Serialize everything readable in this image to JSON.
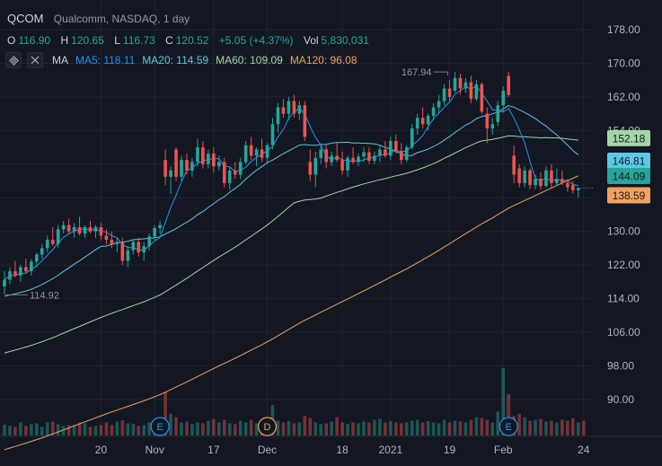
{
  "header": {
    "symbol": "QCOM",
    "description": "Qualcomm, NASDAQ, 1 day",
    "open_label": "O",
    "open": "116.90",
    "high_label": "H",
    "high": "120.65",
    "low_label": "L",
    "low": "116.73",
    "close_label": "C",
    "close": "120.52",
    "change": "+5.05 (+4.37%)",
    "volume_label": "Vol",
    "volume": "5,830,031",
    "ma_label": "MA",
    "ma5": "MA5: 118.11",
    "ma20": "MA20: 114.59",
    "ma60": "MA60: 109.09",
    "ma120": "MA120: 96.08"
  },
  "colors": {
    "background": "#131722",
    "up": "#26a69a",
    "down": "#ef5350",
    "ma5": "#2196f3",
    "ma20": "#5ac8e6",
    "ma60": "#a5d6a7",
    "ma120": "#f0a35e",
    "grid": "#1f2433",
    "axis_text": "#b2b5be"
  },
  "chart_data": {
    "type": "candlestick",
    "y_axis": {
      "ticks": [
        90,
        98,
        106,
        114,
        122,
        130,
        138,
        146,
        154,
        162,
        170,
        178
      ],
      "tick_labels": [
        "90.00",
        "98.00",
        "106.00",
        "114.00",
        "122.00",
        "130.00",
        "138.00",
        "146.00",
        "154.00",
        "162.00",
        "170.00",
        "178.00"
      ],
      "range": [
        86,
        180
      ]
    },
    "x_axis": {
      "ticks": [
        {
          "index": 18,
          "label": "20"
        },
        {
          "index": 28,
          "label": "Nov"
        },
        {
          "index": 39,
          "label": "17"
        },
        {
          "index": 49,
          "label": "Dec"
        },
        {
          "index": 63,
          "label": "18"
        },
        {
          "index": 72,
          "label": "2021"
        },
        {
          "index": 83,
          "label": "19"
        },
        {
          "index": 93,
          "label": "Feb"
        },
        {
          "index": 108,
          "label": "24"
        }
      ]
    },
    "price_labels": [
      {
        "text": "152.18",
        "value": 152.18,
        "bg": "#a5d6a7"
      },
      {
        "text": "146.81",
        "value": 146.81,
        "bg": "#5ac8e6"
      },
      {
        "text": "144.09",
        "value": 144.09,
        "bg": "#26a69a"
      },
      {
        "text": "138.59",
        "value": 138.59,
        "bg": "#f0a35e"
      }
    ],
    "annotations": [
      {
        "text": "167.94",
        "index": 83,
        "value": 167.94,
        "kind": "high"
      },
      {
        "text": "114.92",
        "index": 0,
        "value": 114.92,
        "kind": "low"
      }
    ],
    "events": [
      {
        "text": "E",
        "index": 29,
        "color": "#2196f3"
      },
      {
        "text": "D",
        "index": 49,
        "color": "#f0a35e"
      },
      {
        "text": "E",
        "index": 94,
        "color": "#2196f3"
      }
    ],
    "candles": [
      {
        "o": 116.9,
        "h": 120.6,
        "l": 115.0,
        "c": 118.5
      },
      {
        "o": 118.5,
        "h": 121.5,
        "l": 117.5,
        "c": 120.5
      },
      {
        "o": 120.5,
        "h": 123.0,
        "l": 119.0,
        "c": 119.5
      },
      {
        "o": 119.5,
        "h": 122.0,
        "l": 118.0,
        "c": 121.5
      },
      {
        "o": 121.5,
        "h": 123.5,
        "l": 120.0,
        "c": 120.5
      },
      {
        "o": 120.5,
        "h": 123.5,
        "l": 119.5,
        "c": 122.8
      },
      {
        "o": 122.8,
        "h": 125.0,
        "l": 121.5,
        "c": 124.5
      },
      {
        "o": 124.5,
        "h": 127.0,
        "l": 123.5,
        "c": 126.0
      },
      {
        "o": 126.0,
        "h": 129.0,
        "l": 125.0,
        "c": 128.0
      },
      {
        "o": 128.0,
        "h": 131.0,
        "l": 126.5,
        "c": 127.0
      },
      {
        "o": 127.0,
        "h": 131.5,
        "l": 126.0,
        "c": 130.5
      },
      {
        "o": 130.5,
        "h": 132.5,
        "l": 129.5,
        "c": 131.5
      },
      {
        "o": 131.5,
        "h": 133.0,
        "l": 129.5,
        "c": 130.0
      },
      {
        "o": 130.0,
        "h": 132.0,
        "l": 128.5,
        "c": 131.0
      },
      {
        "o": 131.0,
        "h": 133.5,
        "l": 129.0,
        "c": 129.5
      },
      {
        "o": 129.5,
        "h": 131.5,
        "l": 128.5,
        "c": 131.0
      },
      {
        "o": 131.0,
        "h": 132.5,
        "l": 129.5,
        "c": 130.0
      },
      {
        "o": 130.0,
        "h": 131.5,
        "l": 128.5,
        "c": 131.0
      },
      {
        "o": 131.0,
        "h": 132.0,
        "l": 128.0,
        "c": 129.0
      },
      {
        "o": 129.0,
        "h": 130.5,
        "l": 127.0,
        "c": 128.0
      },
      {
        "o": 128.0,
        "h": 130.0,
        "l": 126.0,
        "c": 127.0
      },
      {
        "o": 127.0,
        "h": 128.5,
        "l": 125.0,
        "c": 127.5
      },
      {
        "o": 127.5,
        "h": 128.5,
        "l": 122.0,
        "c": 123.0
      },
      {
        "o": 123.0,
        "h": 126.5,
        "l": 121.5,
        "c": 125.5
      },
      {
        "o": 125.5,
        "h": 128.0,
        "l": 124.5,
        "c": 127.5
      },
      {
        "o": 127.5,
        "h": 128.5,
        "l": 124.0,
        "c": 125.0
      },
      {
        "o": 125.0,
        "h": 127.5,
        "l": 123.0,
        "c": 126.5
      },
      {
        "o": 126.5,
        "h": 129.5,
        "l": 125.5,
        "c": 128.8
      },
      {
        "o": 128.8,
        "h": 131.5,
        "l": 128.0,
        "c": 130.8
      },
      {
        "o": 130.8,
        "h": 132.5,
        "l": 129.5,
        "c": 131.5
      },
      {
        "o": 147.0,
        "h": 149.5,
        "l": 141.0,
        "c": 143.0
      },
      {
        "o": 143.0,
        "h": 145.5,
        "l": 139.0,
        "c": 144.5
      },
      {
        "o": 149.5,
        "h": 150.0,
        "l": 142.0,
        "c": 143.0
      },
      {
        "o": 143.0,
        "h": 148.0,
        "l": 142.0,
        "c": 147.0
      },
      {
        "o": 147.0,
        "h": 148.5,
        "l": 143.5,
        "c": 144.5
      },
      {
        "o": 144.5,
        "h": 147.5,
        "l": 143.0,
        "c": 146.5
      },
      {
        "o": 146.5,
        "h": 152.0,
        "l": 145.5,
        "c": 150.0
      },
      {
        "o": 150.0,
        "h": 151.5,
        "l": 145.0,
        "c": 146.0
      },
      {
        "o": 146.0,
        "h": 149.5,
        "l": 145.0,
        "c": 148.5
      },
      {
        "o": 148.5,
        "h": 150.0,
        "l": 144.0,
        "c": 145.5
      },
      {
        "o": 145.5,
        "h": 148.0,
        "l": 144.5,
        "c": 146.5
      },
      {
        "o": 146.5,
        "h": 147.5,
        "l": 140.5,
        "c": 141.5
      },
      {
        "o": 141.5,
        "h": 145.5,
        "l": 140.0,
        "c": 144.5
      },
      {
        "o": 144.5,
        "h": 146.5,
        "l": 142.5,
        "c": 143.5
      },
      {
        "o": 143.5,
        "h": 147.5,
        "l": 142.5,
        "c": 146.5
      },
      {
        "o": 146.5,
        "h": 151.5,
        "l": 146.0,
        "c": 150.5
      },
      {
        "o": 150.5,
        "h": 152.5,
        "l": 147.0,
        "c": 148.0
      },
      {
        "o": 148.0,
        "h": 150.0,
        "l": 145.5,
        "c": 149.5
      },
      {
        "o": 149.5,
        "h": 152.0,
        "l": 146.5,
        "c": 147.5
      },
      {
        "o": 147.5,
        "h": 151.0,
        "l": 146.5,
        "c": 150.5
      },
      {
        "o": 150.5,
        "h": 157.0,
        "l": 149.5,
        "c": 155.5
      },
      {
        "o": 155.5,
        "h": 160.5,
        "l": 153.5,
        "c": 159.5
      },
      {
        "o": 159.5,
        "h": 161.5,
        "l": 157.0,
        "c": 158.0
      },
      {
        "o": 158.0,
        "h": 162.0,
        "l": 156.5,
        "c": 161.0
      },
      {
        "o": 161.0,
        "h": 162.5,
        "l": 157.0,
        "c": 158.0
      },
      {
        "o": 158.0,
        "h": 161.0,
        "l": 156.5,
        "c": 160.0
      },
      {
        "o": 160.0,
        "h": 161.0,
        "l": 151.5,
        "c": 152.5
      },
      {
        "o": 146.5,
        "h": 149.5,
        "l": 142.0,
        "c": 143.5
      },
      {
        "o": 143.5,
        "h": 149.0,
        "l": 140.5,
        "c": 147.5
      },
      {
        "o": 147.5,
        "h": 150.5,
        "l": 146.0,
        "c": 149.5
      },
      {
        "o": 149.5,
        "h": 150.5,
        "l": 145.0,
        "c": 146.5
      },
      {
        "o": 146.5,
        "h": 149.0,
        "l": 145.5,
        "c": 148.0
      },
      {
        "o": 148.0,
        "h": 151.0,
        "l": 146.5,
        "c": 147.0
      },
      {
        "o": 147.0,
        "h": 149.0,
        "l": 143.5,
        "c": 144.5
      },
      {
        "o": 144.5,
        "h": 148.0,
        "l": 143.0,
        "c": 147.5
      },
      {
        "o": 147.5,
        "h": 150.0,
        "l": 146.0,
        "c": 146.5
      },
      {
        "o": 146.5,
        "h": 148.5,
        "l": 145.5,
        "c": 147.8
      },
      {
        "o": 147.8,
        "h": 150.0,
        "l": 146.5,
        "c": 148.8
      },
      {
        "o": 148.8,
        "h": 150.0,
        "l": 146.0,
        "c": 146.8
      },
      {
        "o": 146.8,
        "h": 149.0,
        "l": 146.0,
        "c": 148.0
      },
      {
        "o": 148.0,
        "h": 150.5,
        "l": 146.5,
        "c": 149.5
      },
      {
        "o": 149.5,
        "h": 151.5,
        "l": 147.5,
        "c": 148.0
      },
      {
        "o": 148.0,
        "h": 152.5,
        "l": 147.0,
        "c": 151.5
      },
      {
        "o": 151.5,
        "h": 153.0,
        "l": 148.5,
        "c": 149.0
      },
      {
        "o": 149.0,
        "h": 151.0,
        "l": 146.0,
        "c": 147.0
      },
      {
        "o": 147.0,
        "h": 150.5,
        "l": 146.5,
        "c": 150.0
      },
      {
        "o": 150.0,
        "h": 155.5,
        "l": 149.5,
        "c": 154.5
      },
      {
        "o": 154.5,
        "h": 158.0,
        "l": 153.0,
        "c": 157.0
      },
      {
        "o": 157.0,
        "h": 159.5,
        "l": 154.5,
        "c": 155.5
      },
      {
        "o": 155.5,
        "h": 158.0,
        "l": 154.0,
        "c": 157.5
      },
      {
        "o": 157.5,
        "h": 160.5,
        "l": 156.5,
        "c": 159.5
      },
      {
        "o": 159.5,
        "h": 162.5,
        "l": 158.0,
        "c": 161.0
      },
      {
        "o": 161.0,
        "h": 165.0,
        "l": 160.0,
        "c": 164.0
      },
      {
        "o": 164.0,
        "h": 166.0,
        "l": 161.0,
        "c": 162.0
      },
      {
        "o": 163.5,
        "h": 167.94,
        "l": 163.0,
        "c": 166.5
      },
      {
        "o": 166.5,
        "h": 167.5,
        "l": 162.5,
        "c": 164.0
      },
      {
        "o": 164.0,
        "h": 166.5,
        "l": 163.0,
        "c": 165.5
      },
      {
        "o": 165.5,
        "h": 167.0,
        "l": 160.5,
        "c": 161.5
      },
      {
        "o": 161.5,
        "h": 166.0,
        "l": 161.0,
        "c": 165.0
      },
      {
        "o": 165.0,
        "h": 165.5,
        "l": 158.0,
        "c": 158.5
      },
      {
        "o": 158.0,
        "h": 159.5,
        "l": 151.0,
        "c": 154.5
      },
      {
        "o": 154.5,
        "h": 157.0,
        "l": 153.0,
        "c": 155.5
      },
      {
        "o": 156.0,
        "h": 161.0,
        "l": 155.0,
        "c": 160.0
      },
      {
        "o": 160.0,
        "h": 164.5,
        "l": 158.5,
        "c": 163.5
      },
      {
        "o": 167.0,
        "h": 168.0,
        "l": 162.0,
        "c": 162.5
      },
      {
        "o": 148.0,
        "h": 150.5,
        "l": 141.5,
        "c": 143.5
      },
      {
        "o": 145.0,
        "h": 146.0,
        "l": 140.5,
        "c": 141.5
      },
      {
        "o": 141.5,
        "h": 145.5,
        "l": 140.5,
        "c": 144.5
      },
      {
        "o": 144.5,
        "h": 145.0,
        "l": 140.0,
        "c": 141.0
      },
      {
        "o": 141.0,
        "h": 143.5,
        "l": 140.0,
        "c": 142.5
      },
      {
        "o": 142.5,
        "h": 144.0,
        "l": 140.0,
        "c": 140.8
      },
      {
        "o": 140.8,
        "h": 145.5,
        "l": 140.5,
        "c": 144.5
      },
      {
        "o": 144.5,
        "h": 146.0,
        "l": 140.5,
        "c": 141.5
      },
      {
        "o": 141.5,
        "h": 145.0,
        "l": 141.0,
        "c": 142.5
      },
      {
        "o": 142.5,
        "h": 144.5,
        "l": 141.0,
        "c": 141.5
      },
      {
        "o": 141.5,
        "h": 142.5,
        "l": 139.5,
        "c": 140.5
      },
      {
        "o": 141.0,
        "h": 142.0,
        "l": 139.0,
        "c": 139.8
      },
      {
        "o": 139.8,
        "h": 140.5,
        "l": 138.0,
        "c": 140.3
      }
    ],
    "volumes": [
      0.25,
      0.22,
      0.2,
      0.3,
      0.22,
      0.26,
      0.28,
      0.2,
      0.3,
      0.32,
      0.26,
      0.22,
      0.24,
      0.25,
      0.3,
      0.28,
      0.2,
      0.22,
      0.24,
      0.3,
      0.24,
      0.32,
      0.35,
      0.28,
      0.26,
      0.22,
      0.24,
      0.3,
      0.26,
      0.32,
      1.0,
      0.5,
      0.42,
      0.3,
      0.32,
      0.26,
      0.3,
      0.28,
      0.34,
      0.38,
      0.3,
      0.36,
      0.28,
      0.26,
      0.34,
      0.3,
      0.36,
      0.28,
      0.3,
      0.32,
      0.7,
      0.34,
      0.3,
      0.33,
      0.28,
      0.3,
      0.45,
      0.4,
      0.3,
      0.26,
      0.28,
      0.32,
      0.42,
      0.3,
      0.26,
      0.3,
      0.28,
      0.32,
      0.3,
      0.36,
      0.38,
      0.3,
      0.33,
      0.3,
      0.28,
      0.3,
      0.34,
      0.36,
      0.3,
      0.33,
      0.3,
      0.28,
      0.36,
      0.3,
      0.34,
      0.32,
      0.3,
      0.36,
      0.42,
      0.4,
      0.36,
      0.3,
      0.55,
      1.55,
      0.95,
      0.45,
      0.5,
      0.42,
      0.34,
      0.36,
      0.38,
      0.32,
      0.34,
      0.3,
      0.36,
      0.34,
      0.4,
      0.3,
      0.34
    ]
  }
}
